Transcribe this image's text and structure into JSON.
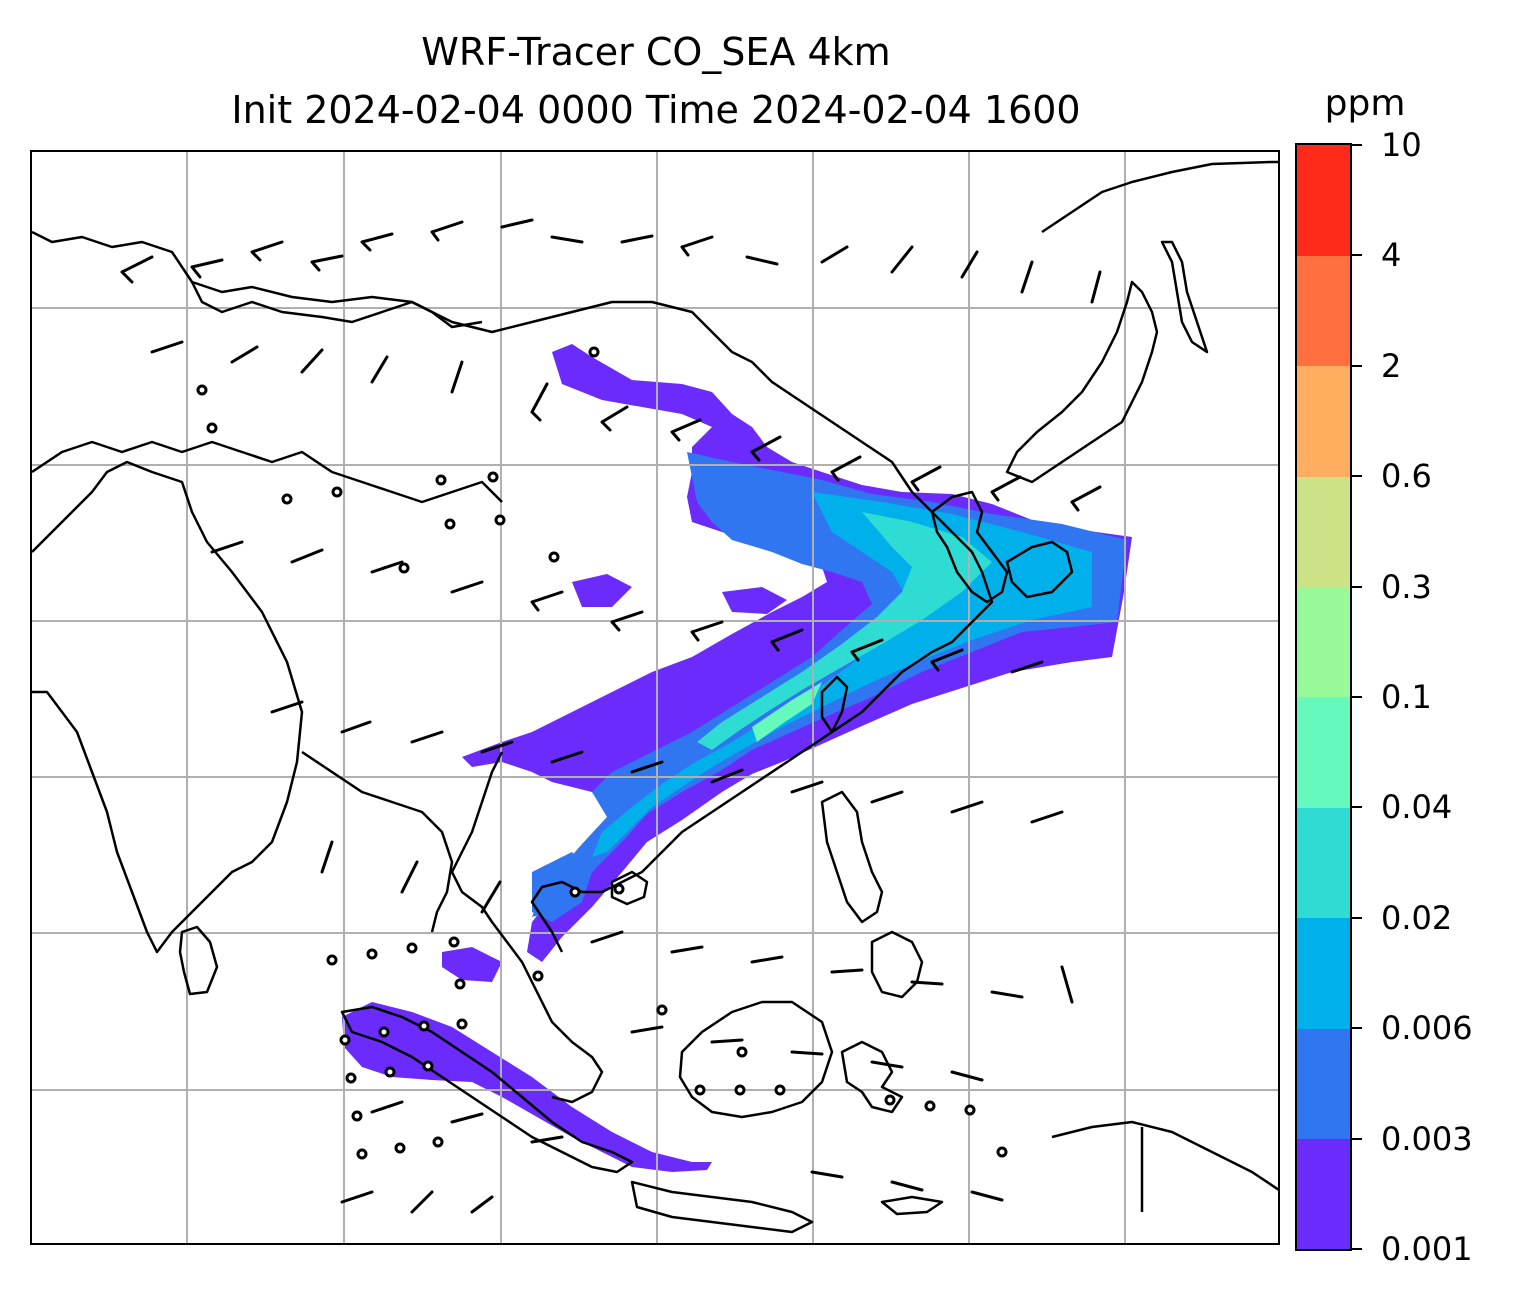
{
  "title": {
    "line1": "WRF-Tracer CO_SEA 4km",
    "line2": "Init 2024-02-04 0000 Time 2024-02-04 1600"
  },
  "colorbar": {
    "unit": "ppm",
    "levels": [
      "0.001",
      "0.003",
      "0.006",
      "0.02",
      "0.04",
      "0.1",
      "0.3",
      "0.6",
      "2",
      "4",
      "10"
    ],
    "colors": [
      "#6a2bfb",
      "#3176f1",
      "#00b0eb",
      "#2fdcd4",
      "#65f9bd",
      "#98f99a",
      "#cde186",
      "#ffad5f",
      "#ff7040",
      "#ff2a19"
    ]
  },
  "map": {
    "gridlines": true,
    "tracer_colors": {
      "faint": "#6a2bfb",
      "low": "#3176f1",
      "mid": "#00b0eb",
      "high": "#2fdcd4",
      "peak": "#65f9bd"
    },
    "coastline_color": "#000000",
    "gridline_color": "#b0b0b0"
  }
}
